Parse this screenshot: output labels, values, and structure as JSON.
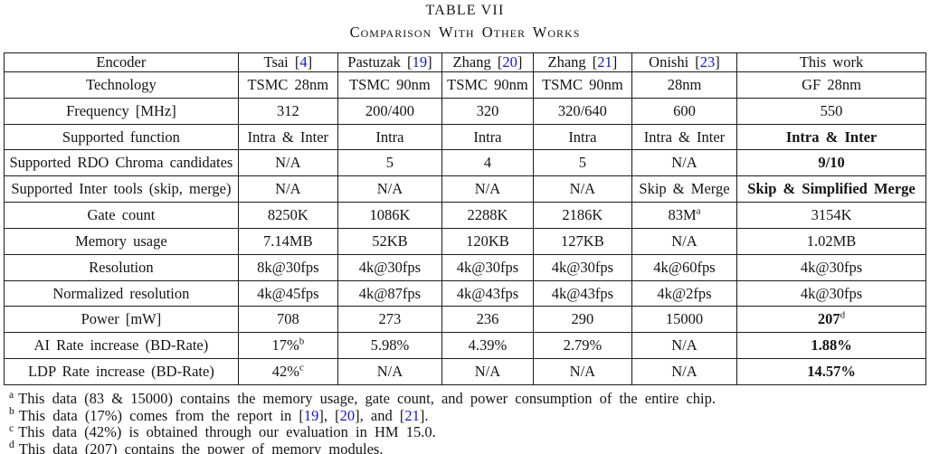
{
  "caption": {
    "number": "TABLE VII",
    "title": "Comparison With Other Works"
  },
  "colors": {
    "cite": "#1414e0",
    "text": "#141414",
    "border": "#1c1c1c"
  },
  "table": {
    "header": [
      {
        "text": "Encoder"
      },
      {
        "name": "Tsai",
        "cite": "4"
      },
      {
        "name": "Pastuzak",
        "cite": "19"
      },
      {
        "name": "Zhang",
        "cite": "20"
      },
      {
        "name": "Zhang",
        "cite": "21"
      },
      {
        "name": "Onishi",
        "cite": "23"
      },
      {
        "text": "This work"
      }
    ],
    "rows": [
      {
        "label": "Technology",
        "cells": [
          {
            "text": "TSMC 28nm"
          },
          {
            "text": "TSMC 90nm"
          },
          {
            "text": "TSMC 90nm"
          },
          {
            "text": "TSMC 90nm"
          },
          {
            "text": "28nm"
          },
          {
            "text": "GF 28nm"
          }
        ]
      },
      {
        "label": "Frequency [MHz]",
        "cells": [
          {
            "text": "312"
          },
          {
            "text": "200/400"
          },
          {
            "text": "320"
          },
          {
            "text": "320/640"
          },
          {
            "text": "600"
          },
          {
            "text": "550"
          }
        ]
      },
      {
        "label": "Supported function",
        "cells": [
          {
            "text": "Intra & Inter"
          },
          {
            "text": "Intra"
          },
          {
            "text": "Intra"
          },
          {
            "text": "Intra"
          },
          {
            "text": "Intra & Inter"
          },
          {
            "text": "Intra & Inter",
            "bold": true
          }
        ]
      },
      {
        "label": "Supported RDO Chroma candidates",
        "cells": [
          {
            "text": "N/A"
          },
          {
            "text": "5"
          },
          {
            "text": "4"
          },
          {
            "text": "5"
          },
          {
            "text": "N/A"
          },
          {
            "text": "9/10",
            "bold": true
          }
        ]
      },
      {
        "label": "Supported Inter tools (skip, merge)",
        "cells": [
          {
            "text": "N/A"
          },
          {
            "text": "N/A"
          },
          {
            "text": "N/A"
          },
          {
            "text": "N/A"
          },
          {
            "text": "Skip & Merge"
          },
          {
            "text": "Skip & Simplified Merge",
            "bold": true
          }
        ]
      },
      {
        "label": "Gate count",
        "cells": [
          {
            "text": "8250K"
          },
          {
            "text": "1086K"
          },
          {
            "text": "2288K"
          },
          {
            "text": "2186K"
          },
          {
            "text": "83M",
            "sup": "a"
          },
          {
            "text": "3154K"
          }
        ]
      },
      {
        "label": "Memory usage",
        "cells": [
          {
            "text": "7.14MB"
          },
          {
            "text": "52KB"
          },
          {
            "text": "120KB"
          },
          {
            "text": "127KB"
          },
          {
            "text": "N/A"
          },
          {
            "text": "1.02MB"
          }
        ]
      },
      {
        "label": "Resolution",
        "cells": [
          {
            "text": "8k@30fps"
          },
          {
            "text": "4k@30fps"
          },
          {
            "text": "4k@30fps"
          },
          {
            "text": "4k@30fps"
          },
          {
            "text": "4k@60fps"
          },
          {
            "text": "4k@30fps"
          }
        ]
      },
      {
        "label": "Normalized resolution",
        "cells": [
          {
            "text": "4k@45fps"
          },
          {
            "text": "4k@87fps"
          },
          {
            "text": "4k@43fps"
          },
          {
            "text": "4k@43fps"
          },
          {
            "text": "4k@2fps"
          },
          {
            "text": "4k@30fps"
          }
        ]
      },
      {
        "label": "Power [mW]",
        "cells": [
          {
            "text": "708"
          },
          {
            "text": "273"
          },
          {
            "text": "236"
          },
          {
            "text": "290"
          },
          {
            "text": "15000"
          },
          {
            "text": "207",
            "sup": "d",
            "bold": true
          }
        ]
      },
      {
        "label": "AI Rate increase (BD-Rate)",
        "cells": [
          {
            "text": "17%",
            "sup": "b"
          },
          {
            "text": "5.98%"
          },
          {
            "text": "4.39%"
          },
          {
            "text": "2.79%"
          },
          {
            "text": "N/A"
          },
          {
            "text": "1.88%",
            "bold": true
          }
        ]
      },
      {
        "label": "LDP Rate increase (BD-Rate)",
        "cells": [
          {
            "text": "42%",
            "sup": "c"
          },
          {
            "text": "N/A"
          },
          {
            "text": "N/A"
          },
          {
            "text": "N/A"
          },
          {
            "text": "N/A"
          },
          {
            "text": "14.57%",
            "bold": true
          }
        ]
      }
    ]
  },
  "footnotes": [
    {
      "marker": "a",
      "segments": [
        {
          "t": "This data (83 & 15000) contains the memory usage, gate count, and power consumption of the entire chip."
        }
      ]
    },
    {
      "marker": "b",
      "segments": [
        {
          "t": "This data (17%) comes from the report in ["
        },
        {
          "t": "19",
          "cite": true
        },
        {
          "t": "], ["
        },
        {
          "t": "20",
          "cite": true
        },
        {
          "t": "], and ["
        },
        {
          "t": "21",
          "cite": true
        },
        {
          "t": "]."
        }
      ]
    },
    {
      "marker": "c",
      "segments": [
        {
          "t": "This data (42%) is obtained through our evaluation in HM 15.0."
        }
      ]
    },
    {
      "marker": "d",
      "segments": [
        {
          "t": "This data (207) contains the power of memory modules."
        }
      ]
    }
  ]
}
